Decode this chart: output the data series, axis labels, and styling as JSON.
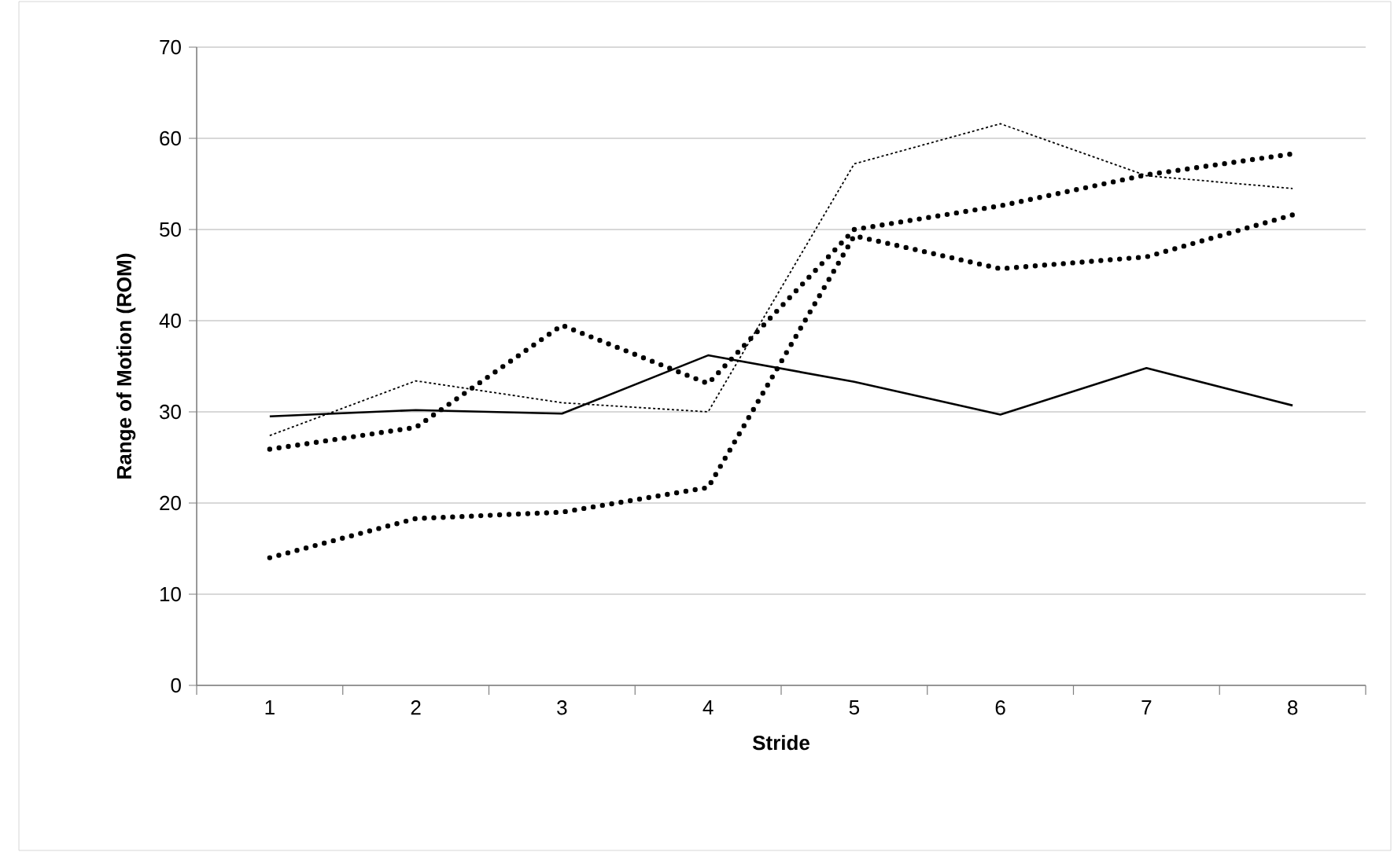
{
  "chart_data": {
    "type": "line",
    "xlabel": "Stride",
    "ylabel": "Range of Motion (ROM)",
    "categories": [
      "1",
      "2",
      "3",
      "4",
      "5",
      "6",
      "7",
      "8"
    ],
    "series": [
      {
        "color": "#000000",
        "line_style": "solid",
        "values": [
          29.5,
          30.2,
          29.8,
          36.2,
          33.3,
          29.7,
          34.8,
          30.7
        ]
      },
      {
        "color": "#000000",
        "line_style": "dashed",
        "values": [
          27.4,
          33.4,
          31.0,
          30.0,
          57.2,
          61.6,
          55.9,
          54.5
        ]
      },
      {
        "color": "#000000",
        "line_style": "dotted",
        "values": [
          25.9,
          28.3,
          39.5,
          33.1,
          50.0,
          52.6,
          56.0,
          58.3
        ]
      },
      {
        "color": "#000000",
        "line_style": "dotted",
        "values": [
          14.0,
          18.3,
          19.0,
          21.7,
          49.3,
          45.7,
          47.0,
          51.6
        ]
      }
    ],
    "ylim": [
      0,
      70
    ],
    "yticks": [
      0,
      10,
      20,
      30,
      40,
      50,
      60,
      70
    ],
    "grid": "y",
    "marker": "none"
  }
}
